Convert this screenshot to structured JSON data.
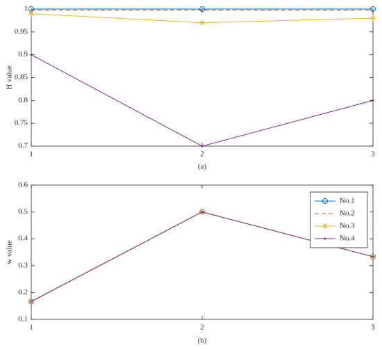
{
  "chart_data": [
    {
      "type": "line",
      "caption": "(a)",
      "y_label": "H value",
      "x": [
        1,
        2,
        3
      ],
      "xlim": [
        1,
        3
      ],
      "xticks": [
        1,
        2,
        3
      ],
      "ylim": [
        0.7,
        1
      ],
      "yticks": [
        0.7,
        0.75,
        0.8,
        0.85,
        0.9,
        0.95,
        1
      ],
      "series": [
        {
          "name": "No.1",
          "color": "#0072bd",
          "marker": "circle",
          "dash": false,
          "values": [
            1,
            1,
            1
          ]
        },
        {
          "name": "No.2",
          "color": "#d95319",
          "marker": "none",
          "dash": true,
          "values": [
            0.998,
            0.998,
            0.998
          ]
        },
        {
          "name": "No.3",
          "color": "#edb120",
          "marker": "star",
          "dash": false,
          "values": [
            0.99,
            0.97,
            0.98
          ]
        },
        {
          "name": "No.4",
          "color": "#7e2f8e",
          "marker": "dot",
          "dash": false,
          "values": [
            0.9,
            0.7,
            0.8
          ]
        }
      ]
    },
    {
      "type": "line",
      "caption": "(b)",
      "y_label": "w value",
      "legend": "northeast",
      "x": [
        1,
        2,
        3
      ],
      "xlim": [
        1,
        3
      ],
      "xticks": [
        1,
        2,
        3
      ],
      "ylim": [
        0.1,
        0.6
      ],
      "yticks": [
        0.1,
        0.2,
        0.3,
        0.4,
        0.5,
        0.6
      ],
      "series": [
        {
          "name": "No.1",
          "color": "#0072bd",
          "marker": "circle",
          "dash": false,
          "values": [
            0.1667,
            0.5,
            0.3333
          ]
        },
        {
          "name": "No.2",
          "color": "#d95319",
          "marker": "none",
          "dash": true,
          "values": [
            0.1667,
            0.5,
            0.3333
          ]
        },
        {
          "name": "No.3",
          "color": "#edb120",
          "marker": "star",
          "dash": false,
          "values": [
            0.1667,
            0.5,
            0.3333
          ]
        },
        {
          "name": "No.4",
          "color": "#7e2f8e",
          "marker": "dot",
          "dash": false,
          "values": [
            0.1667,
            0.5,
            0.3333
          ]
        }
      ]
    }
  ]
}
